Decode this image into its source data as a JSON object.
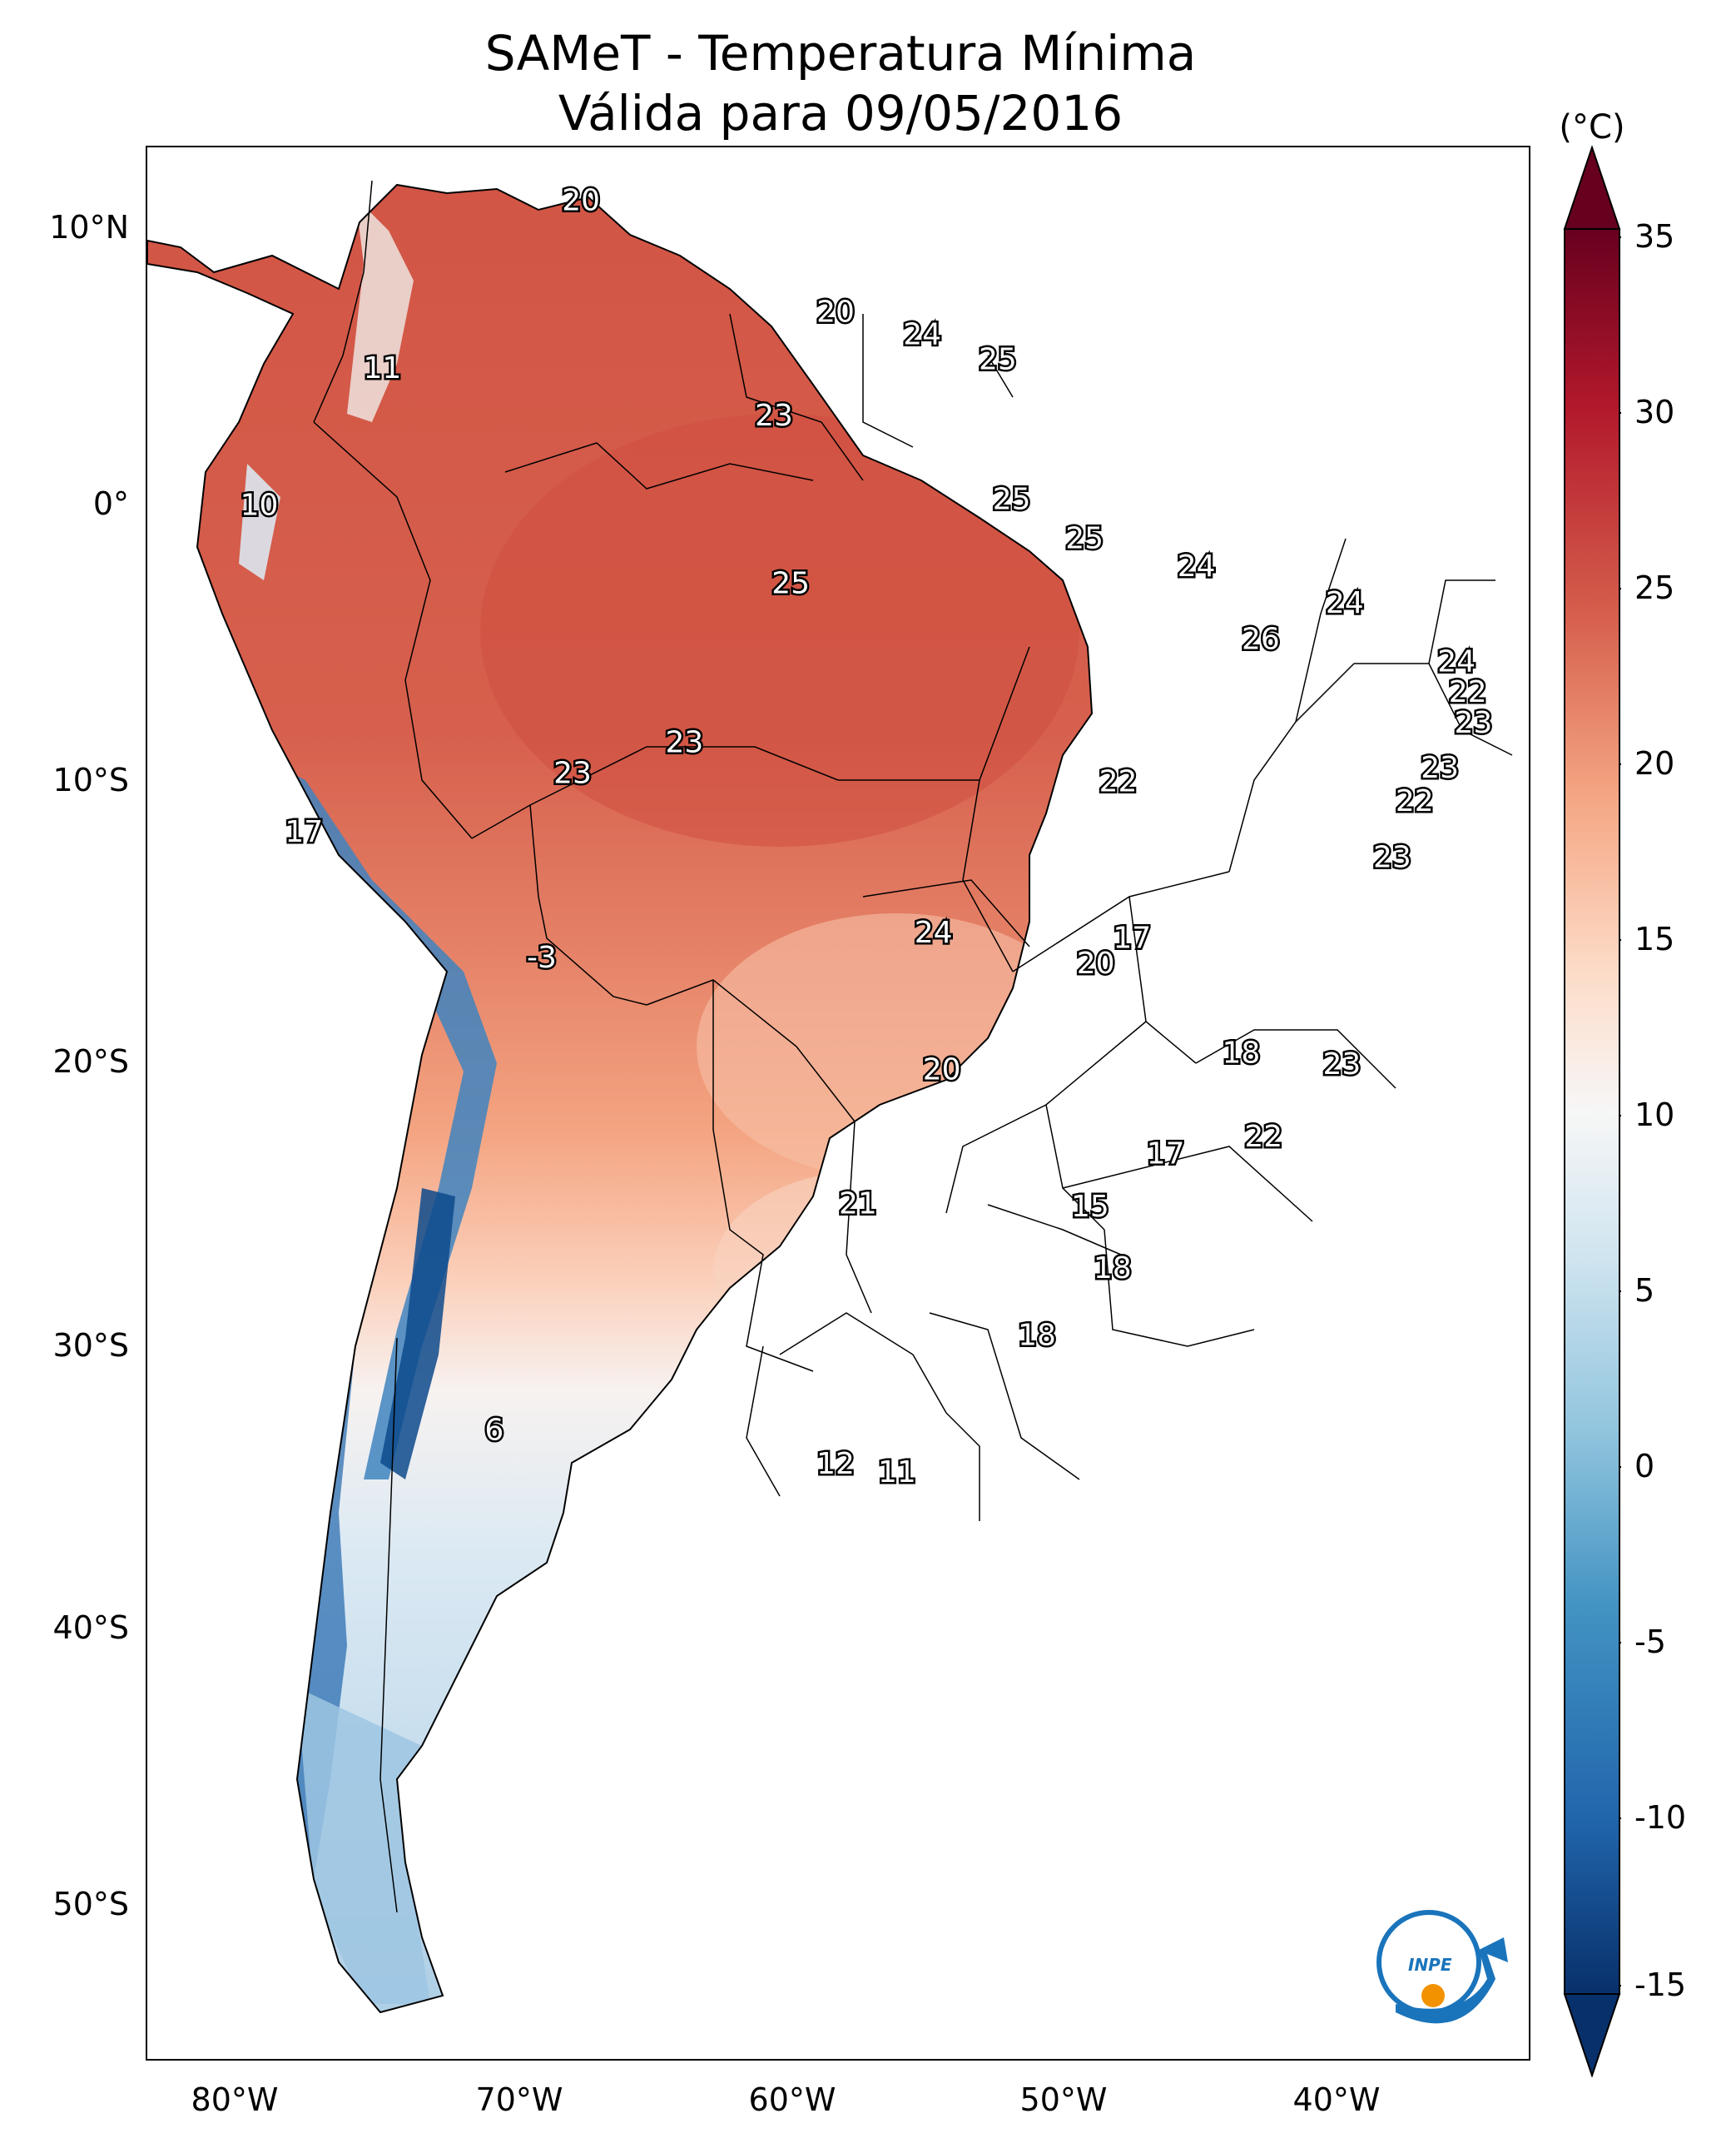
{
  "title": {
    "line1": "SAMeT - Temperatura Mínima",
    "line2": "Válida para 09/05/2016"
  },
  "colorbar": {
    "unit": "(°C)",
    "ticks": [
      "35",
      "30",
      "25",
      "20",
      "15",
      "10",
      "5",
      "0",
      "-5",
      "-10",
      "-15"
    ],
    "range": [
      -15,
      35
    ],
    "colors": [
      "#08306b",
      "#2166ac",
      "#4393c3",
      "#92c5de",
      "#d1e5f0",
      "#f7f7f7",
      "#fddbc7",
      "#f4a582",
      "#d6604d",
      "#b2182b",
      "#67001f"
    ]
  },
  "axes": {
    "lat_labels": [
      "10°N",
      "0°",
      "10°S",
      "20°S",
      "30°S",
      "40°S",
      "50°S"
    ],
    "lon_labels": [
      "80°W",
      "70°W",
      "60°W",
      "50°W",
      "40°W"
    ]
  },
  "station_labels": [
    {
      "text": "20",
      "lon": -67.5,
      "lat": 10.6
    },
    {
      "text": "11",
      "lon": -74.6,
      "lat": 4.6
    },
    {
      "text": "20",
      "lon": -58.4,
      "lat": 6.6
    },
    {
      "text": "24",
      "lon": -55.3,
      "lat": 5.8
    },
    {
      "text": "25",
      "lon": -52.6,
      "lat": 4.9
    },
    {
      "text": "23",
      "lon": -60.6,
      "lat": 2.9
    },
    {
      "text": "10",
      "lon": -79.0,
      "lat": -0.3
    },
    {
      "text": "25",
      "lon": -52.1,
      "lat": -0.1
    },
    {
      "text": "25",
      "lon": -49.5,
      "lat": -1.5
    },
    {
      "text": "24",
      "lon": -45.5,
      "lat": -2.5
    },
    {
      "text": "24",
      "lon": -40.2,
      "lat": -3.8
    },
    {
      "text": "25",
      "lon": -60.0,
      "lat": -3.1
    },
    {
      "text": "26",
      "lon": -43.2,
      "lat": -5.1
    },
    {
      "text": "24",
      "lon": -36.2,
      "lat": -5.9
    },
    {
      "text": "22",
      "lon": -35.8,
      "lat": -7.0
    },
    {
      "text": "23",
      "lon": -35.6,
      "lat": -8.1
    },
    {
      "text": "23",
      "lon": -36.8,
      "lat": -9.7
    },
    {
      "text": "22",
      "lon": -37.7,
      "lat": -10.9
    },
    {
      "text": "23",
      "lon": -63.8,
      "lat": -8.8
    },
    {
      "text": "23",
      "lon": -67.8,
      "lat": -9.9
    },
    {
      "text": "22",
      "lon": -48.3,
      "lat": -10.2
    },
    {
      "text": "23",
      "lon": -38.5,
      "lat": -12.9
    },
    {
      "text": "17",
      "lon": -77.4,
      "lat": -12.0
    },
    {
      "text": "-3",
      "lon": -68.9,
      "lat": -16.5
    },
    {
      "text": "24",
      "lon": -54.9,
      "lat": -15.6
    },
    {
      "text": "17",
      "lon": -47.8,
      "lat": -15.8
    },
    {
      "text": "20",
      "lon": -49.1,
      "lat": -16.7
    },
    {
      "text": "18",
      "lon": -43.9,
      "lat": -19.9
    },
    {
      "text": "23",
      "lon": -40.3,
      "lat": -20.3
    },
    {
      "text": "20",
      "lon": -54.6,
      "lat": -20.5
    },
    {
      "text": "22",
      "lon": -43.1,
      "lat": -22.9
    },
    {
      "text": "17",
      "lon": -46.6,
      "lat": -23.5
    },
    {
      "text": "15",
      "lon": -49.3,
      "lat": -25.4
    },
    {
      "text": "21",
      "lon": -57.6,
      "lat": -25.3
    },
    {
      "text": "18",
      "lon": -48.5,
      "lat": -27.6
    },
    {
      "text": "18",
      "lon": -51.2,
      "lat": -30.0
    },
    {
      "text": "6",
      "lon": -70.6,
      "lat": -33.4
    },
    {
      "text": "12",
      "lon": -58.4,
      "lat": -34.6
    },
    {
      "text": "11",
      "lon": -56.2,
      "lat": -34.9
    }
  ]
}
